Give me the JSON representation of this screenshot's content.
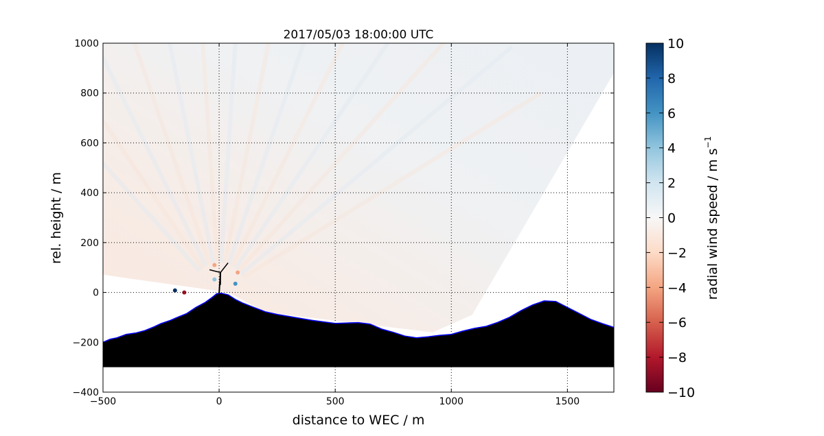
{
  "chart_data": {
    "type": "heatmap",
    "title": "2017/05/03 18:00:00 UTC",
    "xlabel": "distance to WEC / m",
    "ylabel": "rel. height / m",
    "xlim": [
      -500,
      1700
    ],
    "ylim": [
      -400,
      1000
    ],
    "x_ticks": [
      -500,
      0,
      500,
      1000,
      1500
    ],
    "y_ticks": [
      -400,
      -200,
      0,
      200,
      400,
      600,
      800,
      1000
    ],
    "x_tick_labels": [
      "−500",
      "0",
      "500",
      "1000",
      "1500"
    ],
    "y_tick_labels": [
      "−400",
      "−200",
      "0",
      "200",
      "400",
      "600",
      "800",
      "1000"
    ],
    "grid": true,
    "colorbar": {
      "label": "radial wind speed / m s",
      "label_exponent": "−1",
      "vmin": -10,
      "vmax": 10,
      "ticks": [
        10,
        8,
        6,
        4,
        2,
        0,
        -2,
        -4,
        -6,
        -8,
        -10
      ],
      "tick_labels": [
        "10",
        "8",
        "6",
        "4",
        "2",
        "0",
        "−2",
        "−4",
        "−6",
        "−8",
        "−10"
      ],
      "colormap": "RdBu",
      "colors": [
        "#67001f",
        "#b2182b",
        "#d6604d",
        "#f4a582",
        "#fddbc7",
        "#f7f7f7",
        "#d1e5f0",
        "#92c5de",
        "#4393c3",
        "#2166ac",
        "#053061"
      ]
    },
    "terrain_profile": {
      "x": [
        -500,
        -470,
        -440,
        -400,
        -360,
        -320,
        -280,
        -250,
        -210,
        -180,
        -140,
        -100,
        -60,
        -30,
        -10,
        10,
        40,
        70,
        100,
        150,
        200,
        250,
        300,
        400,
        500,
        600,
        650,
        700,
        750,
        800,
        850,
        900,
        950,
        1000,
        1050,
        1100,
        1150,
        1200,
        1250,
        1300,
        1350,
        1400,
        1450,
        1500,
        1550,
        1600,
        1650,
        1700
      ],
      "y": [
        -200,
        -188,
        -182,
        -168,
        -163,
        -153,
        -138,
        -125,
        -112,
        -100,
        -85,
        -60,
        -40,
        -20,
        -5,
        -3,
        -10,
        -28,
        -42,
        -60,
        -78,
        -88,
        -96,
        -112,
        -124,
        -121,
        -127,
        -147,
        -160,
        -175,
        -182,
        -178,
        -172,
        -168,
        -155,
        -144,
        -136,
        -120,
        -100,
        -73,
        -50,
        -34,
        -36,
        -60,
        -84,
        -108,
        -125,
        -140
      ],
      "bottom": -300,
      "fill_color": "#000000",
      "edge_color": "#0000ff"
    },
    "scan_sector": {
      "origin": [
        0,
        0
      ],
      "elevation_range_deg": [
        8,
        55
      ],
      "range_m": [
        150,
        1750
      ],
      "dominant_values": "near 0 (light blue-gray to light pink)"
    },
    "wind_turbine_x": 0
  }
}
